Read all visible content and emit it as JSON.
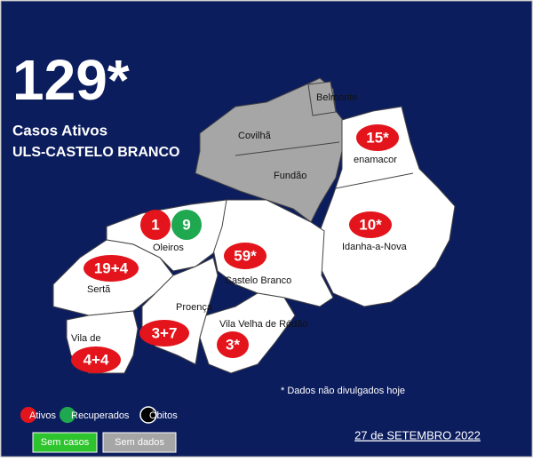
{
  "header": {
    "total": "129*",
    "label": "Casos Ativos",
    "region": "ULS-CASTELO BRANCO"
  },
  "municipalities": [
    {
      "name": "Belmonte"
    },
    {
      "name": "Covilhã"
    },
    {
      "name": "Fundão"
    },
    {
      "name": "enamacor",
      "active": "15*"
    },
    {
      "name": "Idanha-a-Nova",
      "active": "10*"
    },
    {
      "name": "Oleiros",
      "active": "1",
      "recovered": "9"
    },
    {
      "name": "Castelo Branco",
      "active": "59*"
    },
    {
      "name": "Sertã",
      "active": "19+4"
    },
    {
      "name": "Proença",
      "active": "3+7"
    },
    {
      "name": "Vila Velha de Ródão",
      "active": "3*"
    },
    {
      "name": "Vila de",
      "active": "4+4"
    }
  ],
  "note": "* Dados não divulgados hoje",
  "legend": {
    "active": "Ativos",
    "recovered": "Recuperados",
    "deaths": "Óbitos",
    "no_cases": "Sem casos",
    "no_data": "Sem dados"
  },
  "date": "27 de SETEMBRO 2022"
}
